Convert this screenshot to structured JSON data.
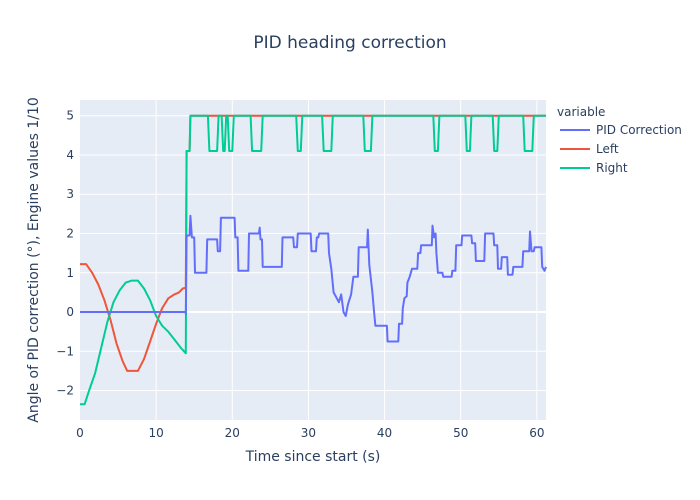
{
  "chart_data": {
    "type": "line",
    "title": "PID heading correction",
    "xlabel": "Time since start (s)",
    "ylabel": "Angle of PID correction (°), Engine values 1/10",
    "xlim": [
      0,
      61.2
    ],
    "ylim": [
      -2.75,
      5.4
    ],
    "x_ticks": [
      0,
      10,
      20,
      30,
      40,
      50,
      60
    ],
    "y_ticks": [
      -2,
      -1,
      0,
      1,
      2,
      3,
      4,
      5
    ],
    "grid": true,
    "legend_title": "variable",
    "legend_position": "top-right",
    "series": [
      {
        "name": "PID Correction",
        "color": "#636efa",
        "points": [
          [
            0,
            0
          ],
          [
            13.9,
            0
          ],
          [
            13.9,
            -0.05
          ],
          [
            14.0,
            1.95
          ],
          [
            14.4,
            1.95
          ],
          [
            14.5,
            2.45
          ],
          [
            14.7,
            1.9
          ],
          [
            15.0,
            1.9
          ],
          [
            15.1,
            1.0
          ],
          [
            16.6,
            1.0
          ],
          [
            16.7,
            1.85
          ],
          [
            18.0,
            1.85
          ],
          [
            18.1,
            1.55
          ],
          [
            18.4,
            1.55
          ],
          [
            18.5,
            2.4
          ],
          [
            20.3,
            2.4
          ],
          [
            20.4,
            1.9
          ],
          [
            20.7,
            1.9
          ],
          [
            20.8,
            1.05
          ],
          [
            22.1,
            1.05
          ],
          [
            22.2,
            2.0
          ],
          [
            23.5,
            2.0
          ],
          [
            23.6,
            2.15
          ],
          [
            23.7,
            1.85
          ],
          [
            23.9,
            1.85
          ],
          [
            24.0,
            1.15
          ],
          [
            26.5,
            1.15
          ],
          [
            26.6,
            1.9
          ],
          [
            28.0,
            1.9
          ],
          [
            28.1,
            1.65
          ],
          [
            28.5,
            1.65
          ],
          [
            28.6,
            2.0
          ],
          [
            30.3,
            2.0
          ],
          [
            30.4,
            1.55
          ],
          [
            31.0,
            1.55
          ],
          [
            31.1,
            1.9
          ],
          [
            31.3,
            1.9
          ],
          [
            31.4,
            2.0
          ],
          [
            32.6,
            2.0
          ],
          [
            32.7,
            1.5
          ],
          [
            33.0,
            1.1
          ],
          [
            33.3,
            0.5
          ],
          [
            34.0,
            0.25
          ],
          [
            34.3,
            0.45
          ],
          [
            34.6,
            0.0
          ],
          [
            34.9,
            -0.1
          ],
          [
            35.2,
            0.2
          ],
          [
            35.6,
            0.45
          ],
          [
            35.9,
            0.9
          ],
          [
            36.5,
            0.9
          ],
          [
            36.6,
            1.65
          ],
          [
            37.7,
            1.65
          ],
          [
            37.8,
            2.1
          ],
          [
            38.0,
            1.2
          ],
          [
            38.4,
            0.5
          ],
          [
            38.6,
            0.05
          ],
          [
            38.8,
            -0.35
          ],
          [
            40.3,
            -0.35
          ],
          [
            40.4,
            -0.75
          ],
          [
            41.8,
            -0.75
          ],
          [
            41.9,
            -0.3
          ],
          [
            42.3,
            -0.3
          ],
          [
            42.4,
            0.1
          ],
          [
            42.6,
            0.35
          ],
          [
            42.9,
            0.4
          ],
          [
            43.0,
            0.75
          ],
          [
            43.3,
            0.9
          ],
          [
            43.6,
            1.1
          ],
          [
            44.3,
            1.1
          ],
          [
            44.4,
            1.5
          ],
          [
            44.7,
            1.5
          ],
          [
            44.8,
            1.7
          ],
          [
            46.2,
            1.7
          ],
          [
            46.3,
            2.2
          ],
          [
            46.5,
            1.9
          ],
          [
            46.7,
            2.0
          ],
          [
            46.8,
            1.5
          ],
          [
            47.0,
            1.0
          ],
          [
            47.6,
            1.0
          ],
          [
            47.7,
            0.9
          ],
          [
            48.8,
            0.9
          ],
          [
            48.9,
            1.05
          ],
          [
            49.3,
            1.05
          ],
          [
            49.4,
            1.7
          ],
          [
            50.1,
            1.7
          ],
          [
            50.2,
            1.95
          ],
          [
            51.4,
            1.95
          ],
          [
            51.5,
            1.75
          ],
          [
            51.9,
            1.75
          ],
          [
            52.0,
            1.3
          ],
          [
            53.1,
            1.3
          ],
          [
            53.2,
            2.0
          ],
          [
            54.3,
            2.0
          ],
          [
            54.4,
            1.7
          ],
          [
            54.8,
            1.7
          ],
          [
            54.9,
            1.1
          ],
          [
            55.3,
            1.1
          ],
          [
            55.4,
            1.4
          ],
          [
            56.1,
            1.4
          ],
          [
            56.2,
            0.95
          ],
          [
            56.8,
            0.95
          ],
          [
            56.9,
            1.15
          ],
          [
            58.1,
            1.15
          ],
          [
            58.2,
            1.55
          ],
          [
            59.0,
            1.55
          ],
          [
            59.1,
            2.05
          ],
          [
            59.3,
            1.55
          ],
          [
            59.6,
            1.55
          ],
          [
            59.7,
            1.65
          ],
          [
            60.6,
            1.65
          ],
          [
            60.7,
            1.15
          ],
          [
            61.0,
            1.05
          ],
          [
            61.2,
            1.15
          ]
        ]
      },
      {
        "name": "Left",
        "color": "#ef553b",
        "points": [
          [
            0,
            1.22
          ],
          [
            0.8,
            1.22
          ],
          [
            1.6,
            1.0
          ],
          [
            2.4,
            0.7
          ],
          [
            3.2,
            0.3
          ],
          [
            4.0,
            -0.2
          ],
          [
            4.8,
            -0.8
          ],
          [
            5.6,
            -1.25
          ],
          [
            6.2,
            -1.5
          ],
          [
            7.6,
            -1.5
          ],
          [
            8.4,
            -1.2
          ],
          [
            9.2,
            -0.75
          ],
          [
            10.0,
            -0.3
          ],
          [
            10.8,
            0.1
          ],
          [
            11.6,
            0.35
          ],
          [
            12.4,
            0.45
          ],
          [
            13.0,
            0.5
          ],
          [
            13.5,
            0.6
          ],
          [
            13.9,
            0.62
          ],
          [
            14.0,
            4.1
          ],
          [
            14.4,
            4.1
          ],
          [
            14.5,
            5.0
          ],
          [
            61.2,
            5.0
          ]
        ]
      },
      {
        "name": "Right",
        "color": "#00cc96",
        "points": [
          [
            0,
            -2.35
          ],
          [
            0.6,
            -2.35
          ],
          [
            1.2,
            -2.0
          ],
          [
            2.0,
            -1.55
          ],
          [
            2.8,
            -0.9
          ],
          [
            3.6,
            -0.25
          ],
          [
            4.4,
            0.25
          ],
          [
            5.2,
            0.55
          ],
          [
            6.0,
            0.75
          ],
          [
            6.8,
            0.8
          ],
          [
            7.6,
            0.8
          ],
          [
            8.4,
            0.6
          ],
          [
            9.2,
            0.3
          ],
          [
            10.0,
            -0.1
          ],
          [
            10.8,
            -0.35
          ],
          [
            11.6,
            -0.5
          ],
          [
            12.4,
            -0.7
          ],
          [
            13.2,
            -0.9
          ],
          [
            13.9,
            -1.05
          ],
          [
            14.0,
            4.1
          ],
          [
            14.4,
            4.1
          ],
          [
            14.5,
            5.0
          ],
          [
            16.8,
            5.0
          ],
          [
            17.0,
            4.1
          ],
          [
            18.0,
            4.1
          ],
          [
            18.2,
            5.0
          ],
          [
            18.6,
            5.0
          ],
          [
            18.8,
            4.1
          ],
          [
            19.0,
            4.1
          ],
          [
            19.2,
            5.0
          ],
          [
            19.4,
            5.0
          ],
          [
            19.6,
            4.1
          ],
          [
            20.0,
            4.1
          ],
          [
            20.2,
            5.0
          ],
          [
            22.4,
            5.0
          ],
          [
            22.6,
            4.1
          ],
          [
            23.8,
            4.1
          ],
          [
            24.0,
            5.0
          ],
          [
            28.4,
            5.0
          ],
          [
            28.6,
            4.1
          ],
          [
            29.0,
            4.1
          ],
          [
            29.2,
            5.0
          ],
          [
            31.8,
            5.0
          ],
          [
            32.0,
            4.1
          ],
          [
            33.0,
            4.1
          ],
          [
            33.2,
            5.0
          ],
          [
            37.2,
            5.0
          ],
          [
            37.4,
            4.1
          ],
          [
            38.2,
            4.1
          ],
          [
            38.4,
            5.0
          ],
          [
            46.4,
            5.0
          ],
          [
            46.6,
            4.1
          ],
          [
            47.0,
            4.1
          ],
          [
            47.2,
            5.0
          ],
          [
            50.6,
            5.0
          ],
          [
            50.8,
            4.1
          ],
          [
            51.2,
            4.1
          ],
          [
            51.4,
            5.0
          ],
          [
            54.2,
            5.0
          ],
          [
            54.4,
            4.1
          ],
          [
            54.8,
            4.1
          ],
          [
            55.0,
            5.0
          ],
          [
            58.2,
            5.0
          ],
          [
            58.4,
            4.1
          ],
          [
            59.4,
            4.1
          ],
          [
            59.6,
            5.0
          ],
          [
            61.2,
            5.0
          ]
        ]
      }
    ]
  }
}
